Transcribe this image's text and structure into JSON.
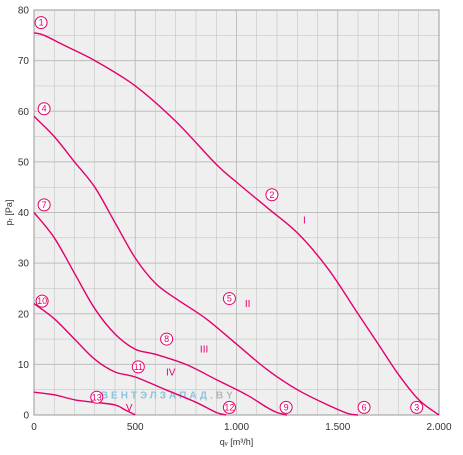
{
  "chart_data": {
    "type": "line",
    "xlabel": "qᵥ [m³/h]",
    "ylabel": "pᵣ [Pa]",
    "xlim": [
      0,
      2000
    ],
    "ylim": [
      0,
      80
    ],
    "grid": true,
    "x_tick_labels": [
      "0",
      "500",
      "1.000",
      "1.500",
      "2.000"
    ],
    "x_tick_values": [
      0,
      500,
      1000,
      1500,
      2000
    ],
    "y_tick_labels": [
      "0",
      "10",
      "20",
      "30",
      "40",
      "50",
      "60",
      "70",
      "80"
    ],
    "y_tick_values": [
      0,
      10,
      20,
      30,
      40,
      50,
      60,
      70,
      80
    ],
    "series": [
      {
        "name": "I",
        "points": [
          [
            0,
            75.5
          ],
          [
            50,
            75
          ],
          [
            150,
            73
          ],
          [
            300,
            70
          ],
          [
            500,
            65
          ],
          [
            700,
            58
          ],
          [
            900,
            49.5
          ],
          [
            1000,
            46
          ],
          [
            1150,
            41
          ],
          [
            1300,
            36
          ],
          [
            1450,
            29
          ],
          [
            1600,
            20
          ],
          [
            1700,
            14
          ],
          [
            1800,
            8
          ],
          [
            1900,
            3
          ],
          [
            2000,
            0
          ]
        ]
      },
      {
        "name": "II",
        "points": [
          [
            0,
            59
          ],
          [
            100,
            55
          ],
          [
            200,
            50
          ],
          [
            300,
            45
          ],
          [
            400,
            38
          ],
          [
            500,
            31
          ],
          [
            600,
            26
          ],
          [
            700,
            23
          ],
          [
            850,
            19
          ],
          [
            1000,
            14
          ],
          [
            1150,
            9
          ],
          [
            1300,
            5
          ],
          [
            1450,
            2
          ],
          [
            1550,
            0.3
          ],
          [
            1600,
            0
          ]
        ]
      },
      {
        "name": "III",
        "points": [
          [
            0,
            40
          ],
          [
            100,
            35
          ],
          [
            200,
            28
          ],
          [
            300,
            21
          ],
          [
            400,
            16
          ],
          [
            500,
            13
          ],
          [
            600,
            12
          ],
          [
            750,
            10
          ],
          [
            900,
            7
          ],
          [
            1050,
            4
          ],
          [
            1150,
            1.5
          ],
          [
            1200,
            0.5
          ],
          [
            1250,
            0
          ]
        ]
      },
      {
        "name": "IV",
        "points": [
          [
            0,
            22
          ],
          [
            100,
            19
          ],
          [
            200,
            15
          ],
          [
            300,
            11
          ],
          [
            400,
            8.5
          ],
          [
            500,
            7.5
          ],
          [
            650,
            5
          ],
          [
            800,
            2.5
          ],
          [
            900,
            0.5
          ],
          [
            950,
            0
          ]
        ]
      },
      {
        "name": "V",
        "points": [
          [
            0,
            4.5
          ],
          [
            100,
            4
          ],
          [
            200,
            3
          ],
          [
            300,
            2.5
          ],
          [
            400,
            2
          ],
          [
            450,
            1
          ],
          [
            500,
            0
          ]
        ]
      }
    ],
    "annotations": [
      {
        "label": "1",
        "x": 35,
        "y": 77.5
      },
      {
        "label": "2",
        "x": 1175,
        "y": 43.5
      },
      {
        "label": "3",
        "x": 1890,
        "y": 1.5
      },
      {
        "label": "4",
        "x": 50,
        "y": 60.5
      },
      {
        "label": "5",
        "x": 965,
        "y": 23
      },
      {
        "label": "6",
        "x": 1630,
        "y": 1.5
      },
      {
        "label": "7",
        "x": 50,
        "y": 41.5
      },
      {
        "label": "8",
        "x": 655,
        "y": 15
      },
      {
        "label": "9",
        "x": 1245,
        "y": 1.5
      },
      {
        "label": "10",
        "x": 40,
        "y": 22.5
      },
      {
        "label": "11",
        "x": 515,
        "y": 9.5
      },
      {
        "label": "12",
        "x": 965,
        "y": 1.5
      },
      {
        "label": "13",
        "x": 310,
        "y": 3.5
      }
    ],
    "curve_labels": [
      {
        "label": "I",
        "x": 1335,
        "y": 38.5
      },
      {
        "label": "II",
        "x": 1055,
        "y": 22
      },
      {
        "label": "III",
        "x": 840,
        "y": 13
      },
      {
        "label": "IV",
        "x": 675,
        "y": 8.5
      },
      {
        "label": "V",
        "x": 470,
        "y": 1.5
      }
    ],
    "watermark": "ВЕНТЭЛЗАПАД",
    "watermark_suffix": ".BY",
    "colors": {
      "curve": "#e3006b",
      "grid": "#bdbdbd",
      "background": "#efefef",
      "watermark_a": "#8ec3dc",
      "watermark_b": "#b7b7b7"
    }
  }
}
